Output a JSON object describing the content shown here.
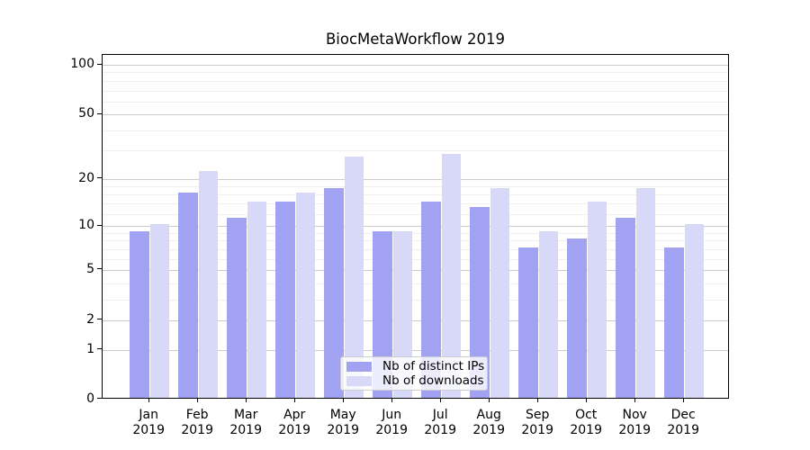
{
  "title": "BiocMetaWorkflow 2019",
  "colors": {
    "ips_bar": "#a2a2f2",
    "downloads_bar": "#d8d8f8",
    "grid_major": "#cccccc",
    "grid_minor": "#efefef",
    "spine": "#000000"
  },
  "legend": {
    "entries": [
      {
        "key": "ips",
        "label": "Nb of distinct IPs"
      },
      {
        "key": "downloads",
        "label": "Nb of downloads"
      }
    ]
  },
  "chart_data": {
    "type": "bar",
    "title": "BiocMetaWorkflow 2019",
    "categories": [
      "Jan 2019",
      "Feb 2019",
      "Mar 2019",
      "Apr 2019",
      "May 2019",
      "Jun 2019",
      "Jul 2019",
      "Aug 2019",
      "Sep 2019",
      "Oct 2019",
      "Nov 2019",
      "Dec 2019"
    ],
    "x_tick_line1": [
      "Jan",
      "Feb",
      "Mar",
      "Apr",
      "May",
      "Jun",
      "Jul",
      "Aug",
      "Sep",
      "Oct",
      "Nov",
      "Dec"
    ],
    "x_tick_line2": [
      "2019",
      "2019",
      "2019",
      "2019",
      "2019",
      "2019",
      "2019",
      "2019",
      "2019",
      "2019",
      "2019",
      "2019"
    ],
    "series": [
      {
        "key": "ips",
        "name": "Nb of distinct IPs",
        "values": [
          9,
          16,
          11,
          14,
          17,
          9,
          14,
          13,
          7,
          8,
          11,
          7
        ]
      },
      {
        "key": "downloads",
        "name": "Nb of downloads",
        "values": [
          10,
          22,
          14,
          16,
          27,
          9,
          28,
          17,
          9,
          14,
          17,
          10
        ]
      }
    ],
    "xlabel": "",
    "ylabel": "",
    "yscale": "log1p",
    "ylim": [
      0,
      115
    ],
    "y_major_ticks": [
      100,
      50,
      20,
      10,
      5,
      2,
      1,
      0
    ],
    "y_minor_gridlines": [
      3,
      4,
      6,
      7,
      8,
      9,
      12,
      14,
      16,
      18,
      30,
      40,
      60,
      70,
      80,
      90
    ],
    "grid": true,
    "legend_position": "lower center inside"
  }
}
